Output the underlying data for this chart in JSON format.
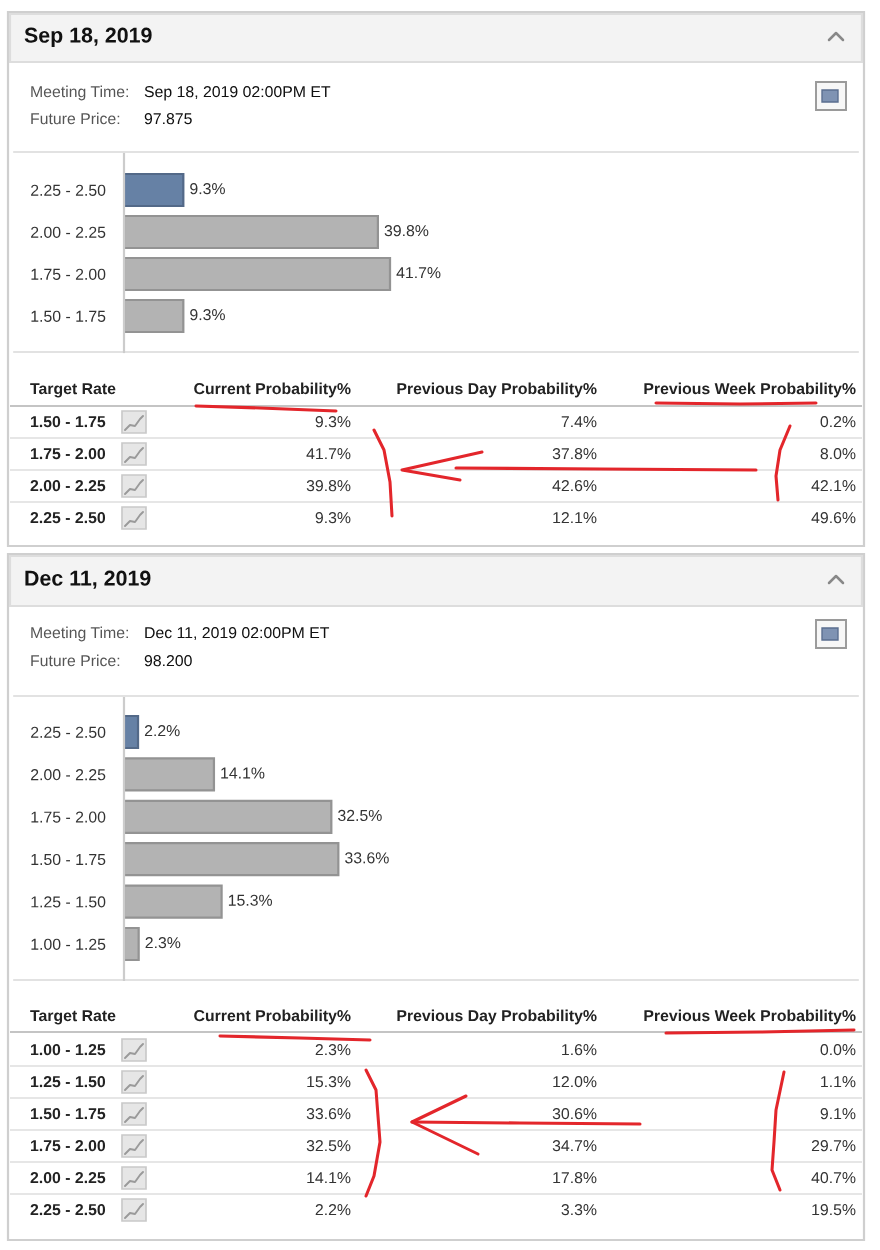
{
  "chart_data": [
    {
      "type": "bar",
      "title": "Sep 18, 2019",
      "annotations": [
        "Meeting Time:",
        "Sep 18, 2019 02:00PM ET",
        "Future Price:",
        "97.875"
      ],
      "orientation": "horizontal",
      "categories": [
        "2.25 - 2.50",
        "2.00 - 2.25",
        "1.75 - 2.00",
        "1.50 - 1.75"
      ],
      "values": [
        9.3,
        39.8,
        41.7,
        9.3
      ],
      "colors": [
        "#5b7fb0",
        "#b3b3b3",
        "#b3b3b3",
        "#b3b3b3"
      ],
      "value_labels": [
        "9.3%",
        "39.8%",
        "41.7%",
        "9.3%"
      ],
      "xlim": [
        0,
        116
      ],
      "tick_labels": "y"
    },
    {
      "type": "other",
      "ylabel": "Target Rate",
      "categories": [
        "1.50 - 1.75",
        "1.75 - 2.00",
        "2.00 - 2.25",
        "2.25 - 2.50"
      ],
      "series": [
        {
          "name": "Current Probability%",
          "values": [
            9.3,
            41.7,
            39.8,
            9.3
          ],
          "value_labels": [
            "9.3%",
            "41.7%",
            "39.8%",
            "9.3%"
          ]
        },
        {
          "name": "Previous Day Probability%",
          "values": [
            7.4,
            37.8,
            42.6,
            12.1
          ],
          "value_labels": [
            "7.4%",
            "37.8%",
            "42.6%",
            "12.1%"
          ]
        },
        {
          "name": "Previous Week Probability%",
          "values": [
            0.2,
            8.0,
            42.1,
            49.6
          ],
          "value_labels": [
            "0.2%",
            "8.0%",
            "42.1%",
            "49.6%"
          ]
        }
      ]
    },
    {
      "type": "bar",
      "title": "Dec 11, 2019",
      "annotations": [
        "Meeting Time:",
        "Dec 11, 2019 02:00PM ET",
        "Future Price:",
        "98.200"
      ],
      "orientation": "horizontal",
      "categories": [
        "2.25 - 2.50",
        "2.00 - 2.25",
        "1.75 - 2.00",
        "1.50 - 1.75",
        "1.25 - 1.50",
        "1.00 - 1.25"
      ],
      "values": [
        2.2,
        14.1,
        32.5,
        33.6,
        15.3,
        2.3
      ],
      "colors": [
        "#5b7fb0",
        "#b3b3b3",
        "#b3b3b3",
        "#b3b3b3",
        "#b3b3b3",
        "#b3b3b3"
      ],
      "value_labels": [
        "2.2%",
        "14.1%",
        "32.5%",
        "33.6%",
        "15.3%",
        "2.3%"
      ],
      "xlim": [
        0,
        116
      ],
      "tick_labels": "y"
    },
    {
      "type": "other",
      "ylabel": "Target Rate",
      "categories": [
        "1.00 - 1.25",
        "1.25 - 1.50",
        "1.50 - 1.75",
        "1.75 - 2.00",
        "2.00 - 2.25",
        "2.25 - 2.50"
      ],
      "series": [
        {
          "name": "Current Probability%",
          "values": [
            2.3,
            15.3,
            33.6,
            32.5,
            14.1,
            2.2
          ],
          "value_labels": [
            "2.3%",
            "15.3%",
            "33.6%",
            "32.5%",
            "14.1%",
            "2.2%"
          ]
        },
        {
          "name": "Previous Day Probability%",
          "values": [
            1.6,
            12.0,
            30.6,
            34.7,
            17.8,
            3.3
          ],
          "value_labels": [
            "1.6%",
            "12.0%",
            "30.6%",
            "34.7%",
            "17.8%",
            "3.3%"
          ]
        },
        {
          "name": "Previous Week Probability%",
          "values": [
            0.0,
            1.1,
            9.1,
            29.7,
            40.7,
            19.5
          ],
          "value_labels": [
            "0.0%",
            "1.1%",
            "9.1%",
            "29.7%",
            "40.7%",
            "19.5%"
          ]
        }
      ]
    }
  ]
}
